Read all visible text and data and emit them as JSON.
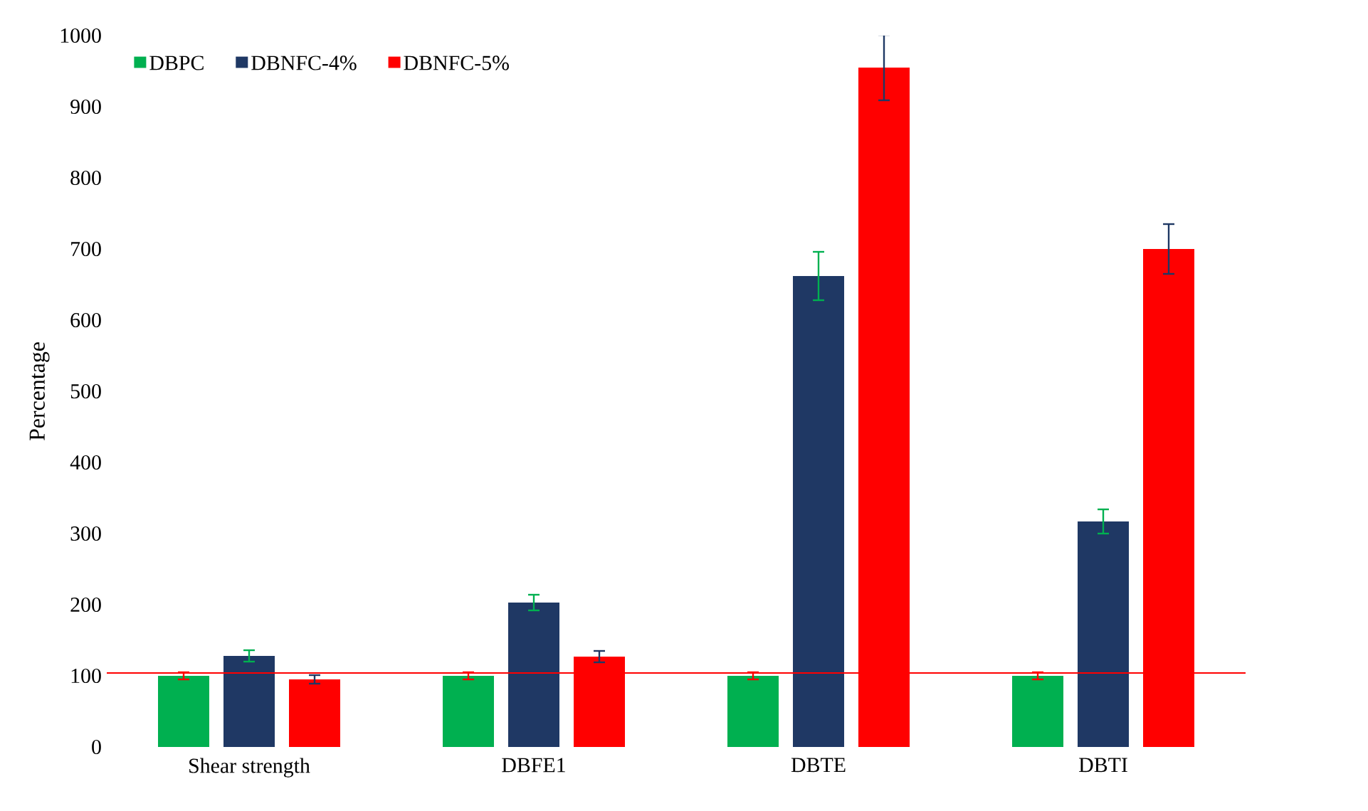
{
  "chart_data": {
    "type": "bar",
    "ylabel": "Percentage",
    "categories": [
      "Shear strength",
      "DBFE1",
      "DBTE",
      "DBTI"
    ],
    "series": [
      {
        "name": "DBPC",
        "color": "#00b050",
        "values": [
          100,
          100,
          100,
          100
        ],
        "errors": [
          5,
          5,
          5,
          5
        ]
      },
      {
        "name": "DBNFC-4%",
        "color": "#1f3864",
        "values": [
          128,
          203,
          662,
          317
        ],
        "errors": [
          8,
          11,
          34,
          17
        ]
      },
      {
        "name": "DBNFC-5%",
        "color": "#ff0000",
        "values": [
          95,
          127,
          955,
          700
        ],
        "errors": [
          6,
          8,
          46,
          35
        ]
      }
    ],
    "ylim": [
      0,
      1000
    ],
    "yticks": [
      0,
      100,
      200,
      300,
      400,
      500,
      600,
      700,
      800,
      900,
      1000
    ],
    "ref_lines": [
      {
        "axis": "y",
        "value": 104,
        "color": "#ff0000"
      }
    ],
    "legend": "top left",
    "grid": false
  }
}
